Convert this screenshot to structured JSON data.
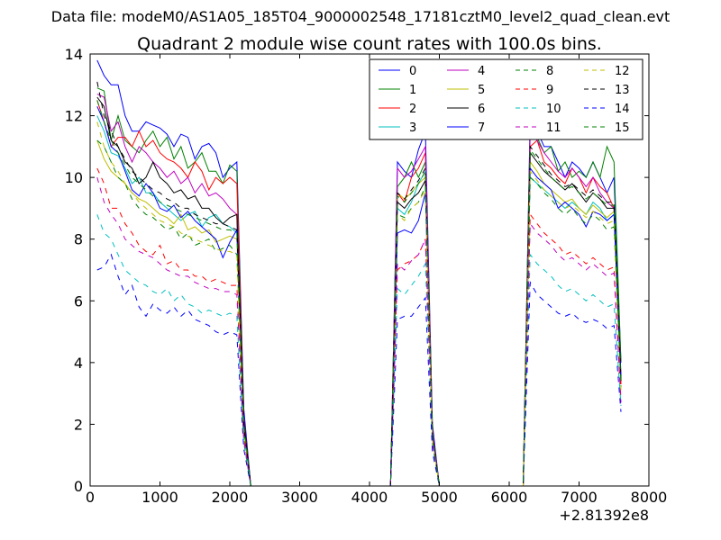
{
  "figure": {
    "suptitle": "Data file: modeM0/AS1A05_185T04_9000002548_17181cztM0_level2_quad_clean.evt"
  },
  "chart_data": {
    "type": "line",
    "title": "Quadrant 2 module wise count rates with 100.0s bins.",
    "xlabel": "",
    "ylabel": "",
    "x_offset_label": "+2.81392e8",
    "xlim": [
      0,
      8000
    ],
    "ylim": [
      0,
      14
    ],
    "xticks": [
      0,
      1000,
      2000,
      3000,
      4000,
      5000,
      6000,
      7000,
      8000
    ],
    "yticks": [
      0,
      2,
      4,
      6,
      8,
      10,
      12,
      14
    ],
    "grid": false,
    "legend_position": "top-right",
    "legend_columns": 4,
    "x": [
      100,
      200,
      300,
      400,
      500,
      600,
      700,
      800,
      900,
      1000,
      1100,
      1200,
      1300,
      1400,
      1500,
      1600,
      1700,
      1800,
      1900,
      2000,
      2100,
      2200,
      2300,
      2400,
      2500,
      4200,
      4300,
      4400,
      4500,
      4600,
      4700,
      4800,
      4900,
      5000,
      5100,
      6100,
      6200,
      6300,
      6400,
      6500,
      6600,
      6700,
      6800,
      6900,
      7000,
      7100,
      7200,
      7300,
      7400,
      7500,
      7600
    ],
    "series": [
      {
        "name": "0",
        "color": "#0000ff",
        "dash": "solid",
        "values": [
          13.8,
          13.3,
          13.0,
          13.0,
          12.0,
          11.5,
          11.5,
          11.8,
          11.7,
          11.6,
          11.4,
          11.0,
          11.4,
          11.3,
          10.6,
          11.0,
          11.1,
          10.8,
          10.0,
          10.3,
          10.5,
          2.5,
          0,
          0,
          0,
          0,
          0,
          10.5,
          10.2,
          10.0,
          10.9,
          11.5,
          2.0,
          0,
          0,
          0,
          0,
          12.0,
          11.5,
          11.0,
          11.0,
          10.5,
          10.0,
          10.5,
          10.3,
          10.0,
          10.5,
          10.0,
          9.5,
          10.0,
          4.0
        ]
      },
      {
        "name": "1",
        "color": "#008000",
        "dash": "solid",
        "values": [
          12.9,
          12.8,
          11.2,
          12.0,
          11.2,
          11.0,
          10.8,
          11.2,
          11.5,
          11.0,
          11.3,
          10.6,
          11.0,
          10.3,
          10.5,
          10.8,
          10.2,
          10.2,
          9.8,
          10.4,
          10.2,
          2.2,
          0,
          0,
          0,
          0,
          0,
          9.7,
          10.0,
          10.5,
          10.0,
          10.5,
          1.8,
          0,
          0,
          0,
          0,
          11.7,
          11.3,
          10.8,
          11.0,
          10.2,
          10.5,
          10.0,
          10.2,
          10.0,
          10.5,
          10.0,
          11.0,
          10.5,
          4.0
        ]
      },
      {
        "name": "2",
        "color": "#ff0000",
        "dash": "solid",
        "values": [
          12.5,
          11.8,
          11.0,
          11.3,
          11.3,
          11.0,
          11.5,
          11.0,
          11.2,
          10.8,
          10.6,
          10.5,
          10.3,
          10.0,
          10.5,
          10.2,
          9.6,
          10.0,
          9.8,
          10.0,
          9.8,
          2.2,
          0,
          0,
          0,
          0,
          0,
          9.5,
          9.2,
          10.0,
          10.3,
          10.8,
          1.8,
          0,
          0,
          0,
          0,
          11.0,
          11.2,
          10.5,
          10.3,
          10.0,
          9.8,
          10.3,
          10.0,
          9.5,
          10.0,
          9.7,
          9.5,
          9.0,
          3.3
        ]
      },
      {
        "name": "3",
        "color": "#00bfbf",
        "dash": "solid",
        "values": [
          12.0,
          11.5,
          10.8,
          10.7,
          10.3,
          9.8,
          10.0,
          9.5,
          9.5,
          9.2,
          9.0,
          8.8,
          8.6,
          8.8,
          8.9,
          8.4,
          8.7,
          8.8,
          8.5,
          8.4,
          8.2,
          2.0,
          0,
          0,
          0,
          0,
          0,
          9.0,
          8.8,
          9.2,
          9.8,
          10.2,
          1.6,
          0,
          0,
          0,
          0,
          10.0,
          9.8,
          9.6,
          9.4,
          9.2,
          9.0,
          9.2,
          9.0,
          8.8,
          9.2,
          9.0,
          8.6,
          8.8,
          3.5
        ]
      },
      {
        "name": "4",
        "color": "#bf00bf",
        "dash": "solid",
        "values": [
          12.7,
          12.6,
          11.5,
          11.8,
          11.0,
          10.5,
          11.0,
          10.8,
          10.5,
          10.3,
          10.0,
          10.2,
          9.8,
          10.0,
          9.5,
          9.8,
          9.4,
          9.5,
          9.3,
          9.0,
          8.8,
          2.1,
          0,
          0,
          0,
          0,
          0,
          10.3,
          10.0,
          10.2,
          10.6,
          11.0,
          1.8,
          0,
          0,
          0,
          0,
          11.5,
          11.2,
          10.8,
          10.5,
          10.2,
          10.0,
          10.3,
          10.0,
          9.7,
          10.0,
          9.5,
          9.2,
          9.0,
          3.6
        ]
      },
      {
        "name": "5",
        "color": "#bfbf00",
        "dash": "solid",
        "values": [
          11.2,
          10.6,
          10.2,
          10.0,
          9.8,
          9.5,
          9.3,
          9.2,
          9.0,
          8.8,
          8.7,
          8.5,
          8.8,
          8.3,
          8.4,
          8.2,
          8.3,
          7.9,
          8.0,
          8.1,
          8.0,
          1.9,
          0,
          0,
          0,
          0,
          0,
          9.5,
          9.3,
          9.5,
          9.8,
          10.0,
          1.6,
          0,
          0,
          0,
          0,
          10.5,
          10.2,
          9.8,
          9.6,
          9.4,
          9.2,
          9.3,
          9.0,
          8.8,
          9.1,
          8.9,
          8.7,
          8.9,
          3.4
        ]
      },
      {
        "name": "6",
        "color": "#000000",
        "dash": "solid",
        "values": [
          12.6,
          12.3,
          11.2,
          11.0,
          10.5,
          10.3,
          9.8,
          10.0,
          10.5,
          10.0,
          9.8,
          9.5,
          9.6,
          9.3,
          9.4,
          9.0,
          9.0,
          8.7,
          8.5,
          8.7,
          8.8,
          2.1,
          0,
          0,
          0,
          0,
          0,
          9.2,
          9.0,
          9.3,
          9.5,
          9.9,
          1.7,
          0,
          0,
          0,
          0,
          10.8,
          10.5,
          10.2,
          10.0,
          9.8,
          9.6,
          9.8,
          9.5,
          9.2,
          9.5,
          9.3,
          9.0,
          9.0,
          3.5
        ]
      },
      {
        "name": "7",
        "color": "#0000ff",
        "dash": "solid",
        "values": [
          12.3,
          11.8,
          11.0,
          10.8,
          10.2,
          9.6,
          9.4,
          9.8,
          9.5,
          9.0,
          8.9,
          9.1,
          8.7,
          8.9,
          8.6,
          8.4,
          8.2,
          8.0,
          7.4,
          7.9,
          8.3,
          1.9,
          0,
          0,
          0,
          0,
          0,
          8.2,
          8.3,
          8.2,
          8.6,
          9.5,
          1.6,
          0,
          0,
          0,
          0,
          10.3,
          10.0,
          9.8,
          9.6,
          9.0,
          9.2,
          9.0,
          8.8,
          8.4,
          8.9,
          8.8,
          8.6,
          8.8,
          3.4
        ]
      },
      {
        "name": "8",
        "color": "#008000",
        "dash": "dashed",
        "values": [
          11.2,
          11.0,
          10.5,
          10.0,
          9.8,
          9.3,
          9.0,
          8.8,
          8.7,
          8.5,
          8.3,
          8.4,
          8.0,
          8.2,
          7.8,
          7.9,
          8.0,
          7.6,
          7.7,
          7.8,
          7.5,
          1.8,
          0,
          0,
          0,
          0,
          0,
          8.8,
          8.7,
          9.0,
          9.2,
          9.7,
          1.5,
          0,
          0,
          0,
          0,
          10.0,
          9.8,
          9.5,
          9.3,
          9.0,
          8.8,
          9.0,
          8.7,
          8.5,
          8.8,
          8.6,
          8.3,
          8.4,
          3.2
        ]
      },
      {
        "name": "9",
        "color": "#ff0000",
        "dash": "dashed",
        "values": [
          10.3,
          9.8,
          9.0,
          9.0,
          8.5,
          8.2,
          7.8,
          7.6,
          7.5,
          7.8,
          7.2,
          7.3,
          7.0,
          7.0,
          6.8,
          6.8,
          6.6,
          6.7,
          6.6,
          6.5,
          6.5,
          1.6,
          0,
          0,
          0,
          0,
          0,
          7.0,
          7.2,
          7.3,
          7.5,
          8.0,
          1.4,
          0,
          0,
          0,
          0,
          8.8,
          8.5,
          8.2,
          8.0,
          7.8,
          7.5,
          7.6,
          7.4,
          7.2,
          7.4,
          7.2,
          7.0,
          7.1,
          2.8
        ]
      },
      {
        "name": "10",
        "color": "#00bfbf",
        "dash": "dashed",
        "values": [
          8.8,
          8.2,
          8.0,
          7.5,
          7.0,
          6.8,
          6.6,
          6.5,
          6.3,
          6.2,
          6.4,
          6.0,
          6.2,
          5.9,
          5.8,
          5.6,
          5.7,
          5.6,
          5.5,
          5.6,
          5.5,
          1.4,
          0,
          0,
          0,
          0,
          0,
          6.4,
          6.2,
          6.5,
          6.8,
          7.2,
          1.3,
          0,
          0,
          0,
          0,
          7.5,
          7.2,
          7.0,
          6.8,
          6.5,
          6.3,
          6.4,
          6.2,
          6.0,
          6.2,
          6.0,
          5.8,
          5.9,
          2.6
        ]
      },
      {
        "name": "11",
        "color": "#bf00bf",
        "dash": "dashed",
        "values": [
          10.0,
          9.2,
          8.8,
          8.5,
          8.0,
          7.8,
          7.6,
          7.5,
          7.4,
          7.2,
          7.0,
          6.9,
          6.8,
          6.8,
          6.6,
          6.5,
          6.4,
          6.4,
          6.3,
          6.3,
          6.2,
          1.5,
          0,
          0,
          0,
          0,
          0,
          7.2,
          7.0,
          7.3,
          7.5,
          8.0,
          1.4,
          0,
          0,
          0,
          0,
          8.5,
          8.2,
          8.0,
          7.8,
          7.5,
          7.3,
          7.4,
          7.2,
          7.0,
          7.2,
          7.0,
          6.8,
          6.9,
          2.7
        ]
      },
      {
        "name": "12",
        "color": "#bfbf00",
        "dash": "dashed",
        "values": [
          11.8,
          11.0,
          10.5,
          10.2,
          9.8,
          9.5,
          9.2,
          9.0,
          8.8,
          8.6,
          8.5,
          8.4,
          8.2,
          8.1,
          8.0,
          7.9,
          7.8,
          7.7,
          7.6,
          7.6,
          7.5,
          1.8,
          0,
          0,
          0,
          0,
          0,
          8.8,
          8.6,
          9.0,
          9.2,
          9.6,
          1.5,
          0,
          0,
          0,
          0,
          10.2,
          9.9,
          9.6,
          9.4,
          9.2,
          9.0,
          9.1,
          8.9,
          8.7,
          8.9,
          8.7,
          8.5,
          8.6,
          3.1
        ]
      },
      {
        "name": "13",
        "color": "#000000",
        "dash": "dashed",
        "values": [
          13.1,
          12.0,
          11.5,
          11.0,
          10.6,
          10.2,
          10.0,
          9.8,
          9.6,
          9.5,
          9.3,
          9.2,
          9.0,
          9.0,
          8.8,
          8.7,
          8.6,
          8.5,
          8.5,
          8.4,
          8.3,
          2.0,
          0,
          0,
          0,
          0,
          0,
          9.5,
          9.3,
          9.6,
          9.9,
          10.3,
          1.7,
          0,
          0,
          0,
          0,
          11.0,
          10.7,
          10.4,
          10.1,
          9.9,
          9.7,
          9.8,
          9.6,
          9.4,
          9.6,
          9.4,
          9.2,
          9.2,
          3.4
        ]
      },
      {
        "name": "14",
        "color": "#0000ff",
        "dash": "dashed",
        "values": [
          7.0,
          7.1,
          7.5,
          6.8,
          6.2,
          6.5,
          5.8,
          5.5,
          5.9,
          5.7,
          5.6,
          5.8,
          5.5,
          5.7,
          5.4,
          5.3,
          5.2,
          5.0,
          4.9,
          5.0,
          4.9,
          1.2,
          0,
          0,
          0,
          0,
          0,
          5.4,
          5.5,
          5.5,
          5.8,
          6.1,
          1.1,
          0,
          0,
          0,
          0,
          6.6,
          6.2,
          6.0,
          5.8,
          5.6,
          5.5,
          5.6,
          5.4,
          5.3,
          5.4,
          5.3,
          5.1,
          5.2,
          2.4
        ]
      },
      {
        "name": "15",
        "color": "#008000",
        "dash": "dashed",
        "values": [
          12.5,
          11.8,
          11.2,
          10.8,
          10.4,
          10.0,
          9.8,
          9.6,
          9.4,
          9.2,
          9.1,
          9.0,
          8.9,
          8.8,
          8.7,
          8.6,
          8.5,
          8.4,
          8.3,
          8.3,
          8.2,
          2.0,
          0,
          0,
          0,
          0,
          0,
          9.4,
          9.2,
          9.5,
          9.8,
          10.2,
          1.7,
          0,
          0,
          0,
          0,
          10.9,
          10.6,
          10.3,
          10.0,
          9.8,
          9.6,
          9.7,
          9.5,
          9.3,
          9.5,
          9.3,
          9.1,
          9.1,
          3.3
        ]
      }
    ]
  }
}
